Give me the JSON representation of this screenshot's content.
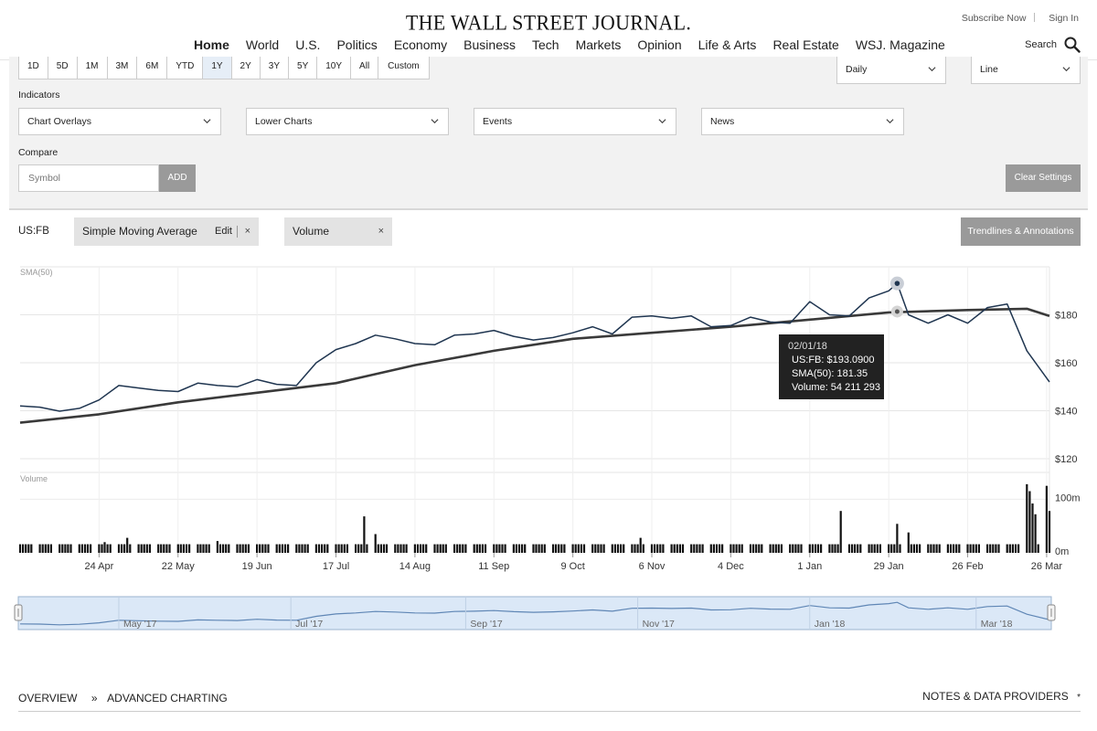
{
  "header": {
    "logo": "THE WALL STREET JOURNAL.",
    "subscribe": "Subscribe Now",
    "sign_in": "Sign In",
    "search_label": "Search",
    "nav": [
      "Home",
      "World",
      "U.S.",
      "Politics",
      "Economy",
      "Business",
      "Tech",
      "Markets",
      "Opinion",
      "Life & Arts",
      "Real Estate",
      "WSJ. Magazine"
    ],
    "nav_active": "Home"
  },
  "controls": {
    "ranges": [
      "1D",
      "5D",
      "1M",
      "3M",
      "6M",
      "YTD",
      "1Y",
      "2Y",
      "3Y",
      "5Y",
      "10Y",
      "All",
      "Custom"
    ],
    "selected_range": "1Y",
    "frequency": "Daily",
    "chart_style": "Line",
    "indicators_label": "Indicators",
    "dropdowns": [
      "Chart Overlays",
      "Lower Charts",
      "Events",
      "News"
    ],
    "compare_label": "Compare",
    "symbol_placeholder": "Symbol",
    "add_label": "ADD",
    "clear_label": "Clear Settings"
  },
  "chart_header": {
    "ticker": "US:FB",
    "overlay_chip": "Simple Moving Average",
    "overlay_edit": "Edit",
    "volume_chip": "Volume",
    "close_glyph": "×",
    "trendlines_label": "Trendlines & Annotations"
  },
  "tooltip": {
    "date": "02/01/18",
    "price_line": "US:FB: $193.0900",
    "sma_line": "SMA(50): 181.35",
    "volume_line": "Volume: 54 211 293"
  },
  "colors": {
    "price_line": "#1f3550",
    "sma_line": "#3a3a3a",
    "volume_bar": "#111111",
    "navigator_fill": "#dbe8f7"
  },
  "chart_data": {
    "type": "line",
    "price_panel_label": "SMA(50)",
    "volume_panel_label": "Volume",
    "price_axis_ticks": [
      "$120",
      "$140",
      "$160",
      "$180"
    ],
    "price_ylim": [
      120,
      200
    ],
    "volume_axis_ticks": [
      "0m",
      "100m"
    ],
    "volume_ylim": [
      0,
      150
    ],
    "x_tick_labels": [
      "24 Apr",
      "22 May",
      "19 Jun",
      "17 Jul",
      "14 Aug",
      "11 Sep",
      "9 Oct",
      "6 Nov",
      "4 Dec",
      "1 Jan",
      "29 Jan",
      "26 Feb",
      "26 Mar"
    ],
    "x_tick_dates": [
      "2017-04-24",
      "2017-05-22",
      "2017-06-19",
      "2017-07-17",
      "2017-08-14",
      "2017-09-11",
      "2017-10-09",
      "2017-11-06",
      "2017-12-04",
      "2018-01-01",
      "2018-01-29",
      "2018-02-26",
      "2018-03-26"
    ],
    "x_range": [
      "2017-03-27",
      "2018-03-27"
    ],
    "navigator_labels": [
      "May '17",
      "Jul '17",
      "Sep '17",
      "Nov '17",
      "Jan '18",
      "Mar '18"
    ],
    "navigator_dates": [
      "2017-05-01",
      "2017-07-01",
      "2017-09-01",
      "2017-11-01",
      "2018-01-01",
      "2018-03-01"
    ],
    "series": [
      {
        "name": "US:FB",
        "points": [
          [
            "2017-03-27",
            142
          ],
          [
            "2017-04-03",
            141.5
          ],
          [
            "2017-04-10",
            139.8
          ],
          [
            "2017-04-17",
            141
          ],
          [
            "2017-04-24",
            144.5
          ],
          [
            "2017-05-01",
            150.5
          ],
          [
            "2017-05-08",
            149.5
          ],
          [
            "2017-05-15",
            148.5
          ],
          [
            "2017-05-22",
            148
          ],
          [
            "2017-05-29",
            151.5
          ],
          [
            "2017-06-05",
            150.5
          ],
          [
            "2017-06-12",
            150
          ],
          [
            "2017-06-19",
            153
          ],
          [
            "2017-06-26",
            151
          ],
          [
            "2017-07-03",
            150.5
          ],
          [
            "2017-07-10",
            160
          ],
          [
            "2017-07-17",
            165.5
          ],
          [
            "2017-07-24",
            168
          ],
          [
            "2017-07-31",
            171.5
          ],
          [
            "2017-08-07",
            170
          ],
          [
            "2017-08-14",
            168
          ],
          [
            "2017-08-21",
            167.5
          ],
          [
            "2017-08-28",
            171.5
          ],
          [
            "2017-09-04",
            172
          ],
          [
            "2017-09-11",
            173.5
          ],
          [
            "2017-09-18",
            171
          ],
          [
            "2017-09-25",
            169.5
          ],
          [
            "2017-10-02",
            170.5
          ],
          [
            "2017-10-09",
            172.5
          ],
          [
            "2017-10-16",
            175
          ],
          [
            "2017-10-23",
            172
          ],
          [
            "2017-10-30",
            179
          ],
          [
            "2017-11-06",
            179.5
          ],
          [
            "2017-11-13",
            178.5
          ],
          [
            "2017-11-20",
            179.5
          ],
          [
            "2017-11-27",
            175
          ],
          [
            "2017-12-04",
            175.5
          ],
          [
            "2017-12-11",
            179
          ],
          [
            "2017-12-18",
            177
          ],
          [
            "2017-12-25",
            176.5
          ],
          [
            "2018-01-01",
            185.5
          ],
          [
            "2018-01-08",
            180
          ],
          [
            "2018-01-15",
            179.5
          ],
          [
            "2018-01-22",
            187
          ],
          [
            "2018-01-29",
            190
          ],
          [
            "2018-02-01",
            193.09
          ],
          [
            "2018-02-05",
            180
          ],
          [
            "2018-02-12",
            176.5
          ],
          [
            "2018-02-19",
            180
          ],
          [
            "2018-02-26",
            176.5
          ],
          [
            "2018-03-05",
            183
          ],
          [
            "2018-03-12",
            184.5
          ],
          [
            "2018-03-19",
            165
          ],
          [
            "2018-03-27",
            152
          ]
        ]
      },
      {
        "name": "SMA(50)",
        "points": [
          [
            "2017-03-27",
            135
          ],
          [
            "2017-04-24",
            138.5
          ],
          [
            "2017-05-22",
            143.5
          ],
          [
            "2017-06-19",
            147.5
          ],
          [
            "2017-07-17",
            151.5
          ],
          [
            "2017-08-14",
            159
          ],
          [
            "2017-09-11",
            165
          ],
          [
            "2017-10-09",
            170
          ],
          [
            "2017-11-06",
            172.5
          ],
          [
            "2017-12-04",
            175
          ],
          [
            "2018-01-01",
            178
          ],
          [
            "2018-01-29",
            181
          ],
          [
            "2018-02-26",
            182
          ],
          [
            "2018-03-19",
            182.5
          ],
          [
            "2018-03-27",
            179.5
          ]
        ]
      },
      {
        "name": "Volume",
        "bars_millions": [
          [
            "2017-04-26",
            20
          ],
          [
            "2017-05-04",
            28
          ],
          [
            "2017-06-05",
            22
          ],
          [
            "2017-07-27",
            68
          ],
          [
            "2017-07-31",
            35
          ],
          [
            "2017-11-02",
            28
          ],
          [
            "2018-01-12",
            78
          ],
          [
            "2018-02-01",
            54
          ],
          [
            "2018-02-05",
            38
          ],
          [
            "2018-03-19",
            128
          ],
          [
            "2018-03-20",
            115
          ],
          [
            "2018-03-21",
            92
          ],
          [
            "2018-03-22",
            72
          ],
          [
            "2018-03-26",
            125
          ],
          [
            "2018-03-27",
            78
          ]
        ],
        "baseline_millions": 16
      }
    ]
  },
  "footer": {
    "overview": "OVERVIEW",
    "sep": "»",
    "advanced": "ADVANCED CHARTING",
    "notes": "NOTES & DATA PROVIDERS",
    "notes_glyph": "*"
  }
}
